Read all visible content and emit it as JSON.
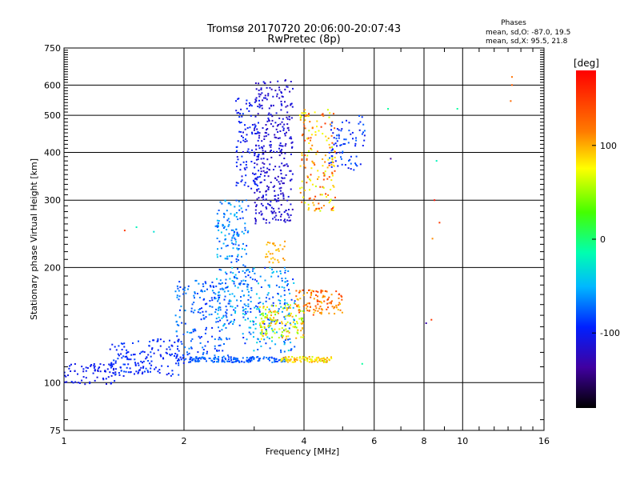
{
  "chart_data": {
    "type": "scatter",
    "title": "Tromsø 20170720 20:06:00-20:07:43",
    "subtitle": "RwPretec (8p)",
    "stats": {
      "title": "Phases",
      "line1": "mean, sd,O: -87.0, 19.5",
      "line2": "mean, sd,X:  95.5, 21.8"
    },
    "xlabel": "Frequency [MHz]",
    "ylabel": "Stationary phase Virtual Height [km]",
    "xscale": "log",
    "yscale": "log",
    "xlim": [
      1,
      16
    ],
    "ylim": [
      75,
      750
    ],
    "xticks": [
      1,
      2,
      4,
      6,
      8,
      10,
      16
    ],
    "xtick_labels": [
      "1",
      "2",
      "4",
      "6",
      "8",
      "10",
      "16"
    ],
    "yticks": [
      75,
      100,
      200,
      300,
      400,
      500,
      600,
      750
    ],
    "ytick_labels": [
      "75",
      "100",
      "200",
      "300",
      "400",
      "500",
      "600",
      "750"
    ],
    "grid": true,
    "colorbar": {
      "label": "[deg]",
      "range": [
        -180,
        180
      ],
      "ticks": [
        100,
        0,
        -100
      ],
      "tick_labels": [
        "100",
        "0",
        "-100"
      ],
      "colormap": "rainbow"
    },
    "clusters": [
      {
        "f": [
          1.0,
          1.35
        ],
        "h": [
          98,
          112
        ],
        "phase": [
          -110,
          -95
        ],
        "n": 70
      },
      {
        "f": [
          1.3,
          2.0
        ],
        "h": [
          104,
          130
        ],
        "phase": [
          -105,
          -80
        ],
        "n": 170
      },
      {
        "f": [
          1.9,
          2.6
        ],
        "h": [
          113,
          185
        ],
        "phase": [
          -95,
          -55
        ],
        "n": 190
      },
      {
        "f": [
          2.0,
          3.6
        ],
        "h": [
          113,
          117
        ],
        "phase": [
          -90,
          -65
        ],
        "n": 140
      },
      {
        "f": [
          2.4,
          2.9
        ],
        "h": [
          140,
          300
        ],
        "phase": [
          -90,
          -40
        ],
        "n": 230
      },
      {
        "f": [
          2.8,
          3.8
        ],
        "h": [
          120,
          200
        ],
        "phase": [
          -95,
          -30
        ],
        "n": 200
      },
      {
        "f": [
          3.0,
          3.75
        ],
        "h": [
          260,
          620
        ],
        "phase": [
          -125,
          -105
        ],
        "n": 340
      },
      {
        "f": [
          2.7,
          3.1
        ],
        "h": [
          320,
          560
        ],
        "phase": [
          -115,
          -85
        ],
        "n": 110
      },
      {
        "f": [
          3.5,
          4.7
        ],
        "h": [
          113,
          117
        ],
        "phase": [
          60,
          110
        ],
        "n": 90
      },
      {
        "f": [
          3.1,
          4.0
        ],
        "h": [
          130,
          160
        ],
        "phase": [
          40,
          110
        ],
        "n": 140
      },
      {
        "f": [
          3.8,
          5.0
        ],
        "h": [
          150,
          175
        ],
        "phase": [
          90,
          150
        ],
        "n": 110
      },
      {
        "f": [
          3.9,
          4.8
        ],
        "h": [
          280,
          520
        ],
        "phase": [
          60,
          150
        ],
        "n": 170
      },
      {
        "f": [
          4.6,
          5.7
        ],
        "h": [
          360,
          500
        ],
        "phase": [
          -110,
          -70
        ],
        "n": 80
      },
      {
        "f": [
          3.2,
          3.6
        ],
        "h": [
          205,
          235
        ],
        "phase": [
          90,
          110
        ],
        "n": 30
      }
    ],
    "isolated_points": [
      {
        "f": 6.5,
        "h": 520,
        "phase": -10
      },
      {
        "f": 9.7,
        "h": 520,
        "phase": -10
      },
      {
        "f": 13.3,
        "h": 630,
        "phase": 120
      },
      {
        "f": 13.3,
        "h": 600,
        "phase": 130
      },
      {
        "f": 13.2,
        "h": 545,
        "phase": 125
      },
      {
        "f": 1.42,
        "h": 250,
        "phase": 150
      },
      {
        "f": 1.52,
        "h": 255,
        "phase": -20
      },
      {
        "f": 1.68,
        "h": 248,
        "phase": -30
      },
      {
        "f": 8.6,
        "h": 380,
        "phase": -20
      },
      {
        "f": 8.4,
        "h": 238,
        "phase": 110
      },
      {
        "f": 8.75,
        "h": 262,
        "phase": 150
      },
      {
        "f": 6.6,
        "h": 385,
        "phase": -140
      },
      {
        "f": 8.1,
        "h": 143,
        "phase": -130
      },
      {
        "f": 8.35,
        "h": 146,
        "phase": 150
      },
      {
        "f": 5.6,
        "h": 112,
        "phase": -10
      },
      {
        "f": 8.5,
        "h": 300,
        "phase": 170
      }
    ]
  }
}
